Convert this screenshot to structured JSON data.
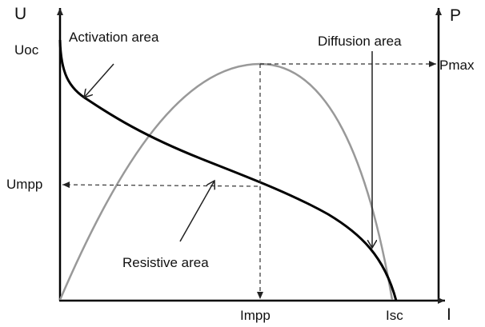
{
  "axes": {
    "left": "U",
    "right": "P",
    "bottom": "I"
  },
  "labels": {
    "uoc": "Uoc",
    "umpp": "Umpp",
    "pmax": "Pmax",
    "impp": "Impp",
    "isc": "Isc"
  },
  "areas": {
    "activation": "Activation area",
    "diffusion": "Diffusion area",
    "resistive": "Resistive area"
  }
}
